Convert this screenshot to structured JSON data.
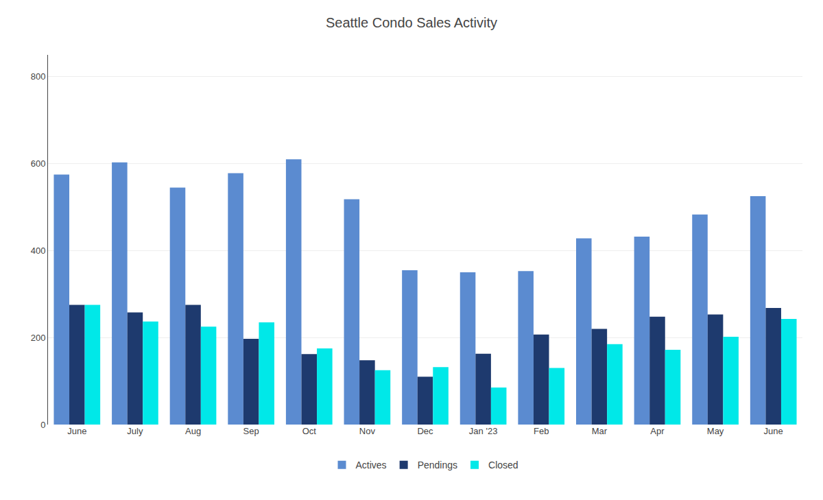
{
  "chart_data": {
    "type": "bar",
    "title": "Seattle Condo Sales Activity",
    "categories": [
      "June",
      "July",
      "Aug",
      "Sep",
      "Oct",
      "Nov",
      "Dec",
      "Jan '23",
      "Feb",
      "Mar",
      "Apr",
      "May",
      "June"
    ],
    "series": [
      {
        "name": "Actives",
        "color": "#5b8bd0",
        "values": [
          575,
          603,
          545,
          578,
          610,
          518,
          355,
          350,
          353,
          428,
          432,
          483,
          525
        ]
      },
      {
        "name": "Pendings",
        "color": "#1e3a6e",
        "values": [
          275,
          258,
          275,
          197,
          162,
          148,
          110,
          163,
          207,
          220,
          248,
          253,
          268
        ]
      },
      {
        "name": "Closed",
        "color": "#00e8e8",
        "values": [
          275,
          237,
          225,
          235,
          175,
          125,
          132,
          85,
          130,
          185,
          172,
          202,
          243
        ]
      }
    ],
    "ylim": [
      0,
      850
    ],
    "yticks": [
      0,
      200,
      400,
      600,
      800
    ],
    "grid": true,
    "legend": "bottom"
  }
}
